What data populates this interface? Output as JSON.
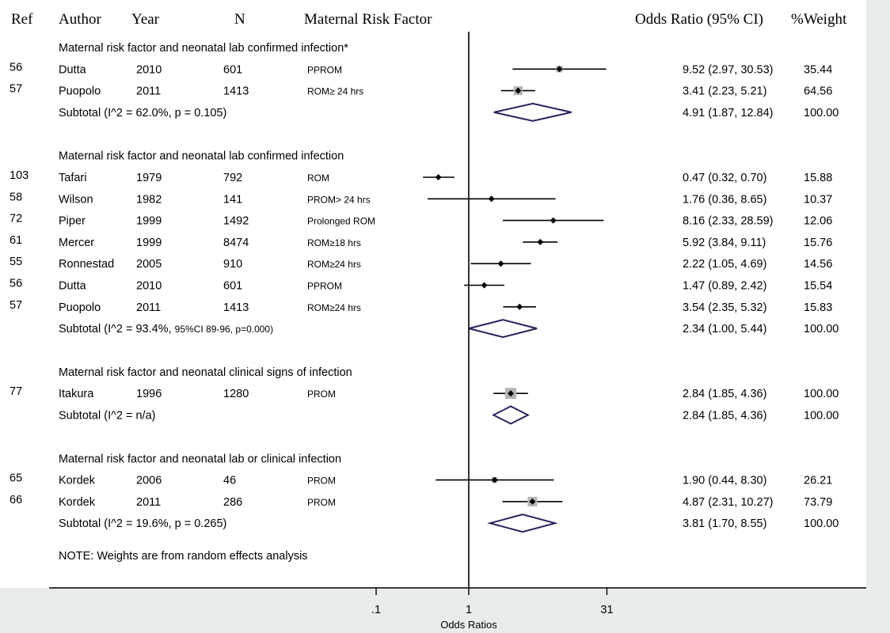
{
  "headers": {
    "ref": "Ref",
    "author": "Author",
    "year": "Year",
    "n": "N",
    "factor": "Maternal Risk Factor",
    "or": "Odds Ratio (95% CI)",
    "weight": "%Weight"
  },
  "note": "NOTE: Weights are from random effects analysis",
  "colors": {
    "diamond": "#2e1f5e",
    "weight_box": "#b5b5b5",
    "background_band": "#e8ecec"
  },
  "chart_data": {
    "type": "forest",
    "xlabel": "Odds Ratios",
    "x_scale": "log",
    "reference_line": 1,
    "x_ticks": [
      {
        "value": 0.1,
        "label": ".1"
      },
      {
        "value": 1,
        "label": "1"
      },
      {
        "value": 31,
        "label": "31"
      }
    ],
    "sections": [
      {
        "title": "Maternal risk factor and neonatal lab confirmed infection*",
        "studies": [
          {
            "ref": "56",
            "author": "Dutta",
            "year": "2010",
            "n": "601",
            "factor": "PPROM",
            "or": 9.52,
            "lo": 2.97,
            "hi": 30.53,
            "or_text": "9.52 (2.97, 30.53)",
            "weight": "35.44"
          },
          {
            "ref": "57",
            "author": "Puopolo",
            "year": "2011",
            "n": "1413",
            "factor": "ROM≥ 24 hrs",
            "or": 3.41,
            "lo": 2.23,
            "hi": 5.21,
            "or_text": "3.41 (2.23, 5.21)",
            "weight": "64.56"
          }
        ],
        "subtotal": {
          "label_main": "Subtotal (I^2 = 62.0%, p = 0.105)",
          "label_small": "",
          "or": 4.91,
          "lo": 1.87,
          "hi": 12.84,
          "or_text": "4.91 (1.87, 12.84)",
          "weight": "100.00"
        }
      },
      {
        "title": "Maternal risk factor and neonatal lab confirmed infection",
        "studies": [
          {
            "ref": "103",
            "author": "Tafari",
            "year": "1979",
            "n": "792",
            "factor": "ROM",
            "or": 0.47,
            "lo": 0.32,
            "hi": 0.7,
            "or_text": "0.47 (0.32, 0.70)",
            "weight": "15.88"
          },
          {
            "ref": "58",
            "author": "Wilson",
            "year": "1982",
            "n": "141",
            "factor": "PROM> 24 hrs",
            "or": 1.76,
            "lo": 0.36,
            "hi": 8.65,
            "or_text": "1.76 (0.36, 8.65)",
            "weight": "10.37"
          },
          {
            "ref": "72",
            "author": "Piper",
            "year": "1999",
            "n": "1492",
            "factor": "Prolonged ROM",
            "or": 8.16,
            "lo": 2.33,
            "hi": 28.59,
            "or_text": "8.16 (2.33, 28.59)",
            "weight": "12.06"
          },
          {
            "ref": "61",
            "author": "Mercer",
            "year": "1999",
            "n": "8474",
            "factor": "ROM≥18 hrs",
            "or": 5.92,
            "lo": 3.84,
            "hi": 9.11,
            "or_text": "5.92 (3.84, 9.11)",
            "weight": "15.76"
          },
          {
            "ref": "55",
            "author": "Ronnestad",
            "year": "2005",
            "n": "910",
            "factor": "ROM≥24 hrs",
            "or": 2.22,
            "lo": 1.05,
            "hi": 4.69,
            "or_text": "2.22 (1.05, 4.69)",
            "weight": "14.56"
          },
          {
            "ref": "56",
            "author": "Dutta",
            "year": "2010",
            "n": "601",
            "factor": "PPROM",
            "or": 1.47,
            "lo": 0.89,
            "hi": 2.42,
            "or_text": "1.47 (0.89, 2.42)",
            "weight": "15.54"
          },
          {
            "ref": "57",
            "author": "Puopolo",
            "year": "2011",
            "n": "1413",
            "factor": "ROM≥24 hrs",
            "or": 3.54,
            "lo": 2.35,
            "hi": 5.32,
            "or_text": "3.54 (2.35, 5.32)",
            "weight": "15.83"
          }
        ],
        "subtotal": {
          "label_main": "Subtotal (I^2 = 93.4%, ",
          "label_small": "95%CI 89-96, p=0.000)",
          "or": 2.34,
          "lo": 1.0,
          "hi": 5.44,
          "or_text": "2.34 (1.00, 5.44)",
          "weight": "100.00"
        }
      },
      {
        "title": "Maternal risk factor and neonatal clinical signs of infection",
        "studies": [
          {
            "ref": "77",
            "author": "Itakura",
            "year": "1996",
            "n": "1280",
            "factor": "PROM",
            "or": 2.84,
            "lo": 1.85,
            "hi": 4.36,
            "or_text": "2.84 (1.85, 4.36)",
            "weight": "100.00"
          }
        ],
        "subtotal": {
          "label_main": "Subtotal (I^2 = n/a)",
          "label_small": "",
          "or": 2.84,
          "lo": 1.85,
          "hi": 4.36,
          "or_text": "2.84 (1.85, 4.36)",
          "weight": "100.00"
        }
      },
      {
        "title": "Maternal risk factor and neonatal lab or clinical infection",
        "studies": [
          {
            "ref": "65",
            "author": "Kordek",
            "year": "2006",
            "n": "46",
            "factor": "PROM",
            "or": 1.9,
            "lo": 0.44,
            "hi": 8.3,
            "or_text": "1.90 (0.44, 8.30)",
            "weight": "26.21"
          },
          {
            "ref": "66",
            "author": "Kordek",
            "year": "2011",
            "n": "286",
            "factor": "PROM",
            "or": 4.87,
            "lo": 2.31,
            "hi": 10.27,
            "or_text": "4.87 (2.31, 10.27)",
            "weight": "73.79"
          }
        ],
        "subtotal": {
          "label_main": "Subtotal (I^2 = 19.6%, p = 0.265)",
          "label_small": "",
          "or": 3.81,
          "lo": 1.7,
          "hi": 8.55,
          "or_text": "3.81 (1.70, 8.55)",
          "weight": "100.00"
        }
      }
    ]
  }
}
